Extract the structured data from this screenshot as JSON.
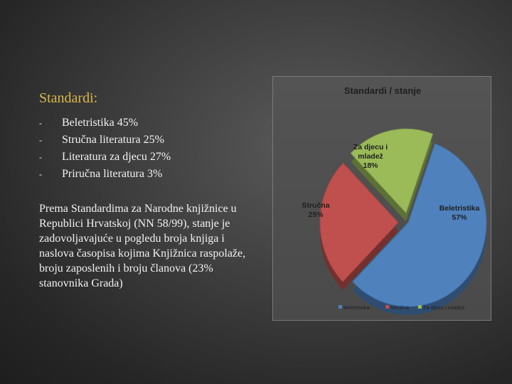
{
  "heading": "Standardi:",
  "bullets": [
    {
      "label": "Beletristika 45%"
    },
    {
      "label": "Stručna literatura 25%"
    },
    {
      "label": "Literatura za djecu 27%"
    },
    {
      "label": "Priručna literatura 3%"
    }
  ],
  "bullet_marker": "-",
  "paragraph": "Prema Standardima za Narodne knjižnice u Republici Hrvatskoj (NN 58/99), stanje je zadovoljavajuće u pogledu broja knjiga i naslova časopisa kojima Knjižnica raspolaže, broju zaposlenih i broju članova (23% stanovnika Grada)",
  "colors": {
    "heading": "#d9b84a",
    "beletristika": "#4f81bd",
    "strucna": "#c0504d",
    "djeca": "#9bbb59"
  },
  "chart_data": {
    "type": "pie",
    "title": "Standardi / stanje",
    "legend_position": "bottom",
    "slices": [
      {
        "name": "Beletristika",
        "value": 57,
        "label_lines": [
          "Beletristika",
          "57%"
        ],
        "color": "#4f81bd"
      },
      {
        "name": "Stručna",
        "value": 25,
        "label_lines": [
          "Stručna",
          "25%"
        ],
        "color": "#c0504d"
      },
      {
        "name": "Za djecu i mladež",
        "value": 18,
        "label_lines": [
          "Za djecu i",
          "mladež",
          "18%"
        ],
        "color": "#9bbb59"
      }
    ]
  }
}
